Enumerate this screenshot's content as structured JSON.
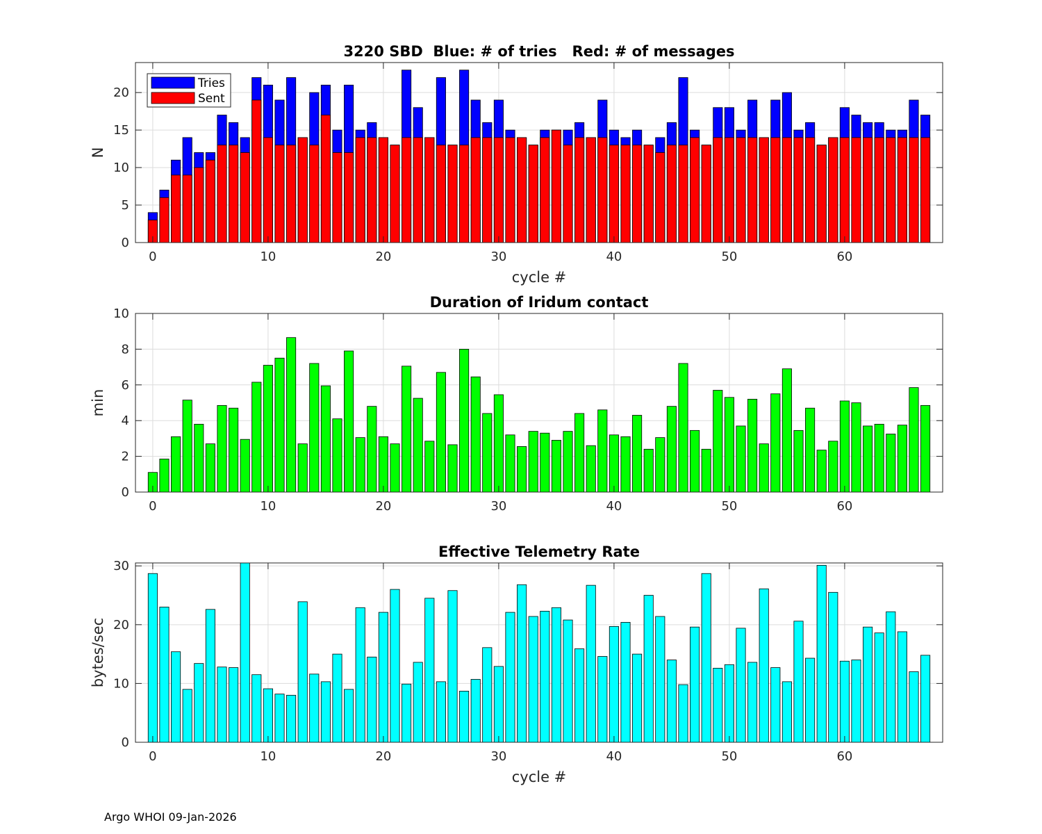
{
  "footer": "Argo WHOI 09-Jan-2026",
  "chart_data": [
    {
      "type": "bar",
      "title": "3220 SBD  Blue: # of tries   Red: # of messages",
      "xlabel": "cycle #",
      "ylabel": "N",
      "xlim": [
        -1.5,
        68.5
      ],
      "ylim": [
        0,
        24
      ],
      "xticks": [
        0,
        10,
        20,
        30,
        40,
        50,
        60
      ],
      "yticks": [
        0,
        5,
        10,
        15,
        20
      ],
      "grid": true,
      "legend": {
        "position": "top-left",
        "entries": [
          "Tries",
          "Sent"
        ]
      },
      "colors": {
        "tries": "#0000ff",
        "sent": "#ff0000"
      },
      "x": [
        0,
        1,
        2,
        3,
        4,
        5,
        6,
        7,
        8,
        9,
        10,
        11,
        12,
        13,
        14,
        15,
        16,
        17,
        18,
        19,
        20,
        21,
        22,
        23,
        24,
        25,
        26,
        27,
        28,
        29,
        30,
        31,
        32,
        33,
        34,
        35,
        36,
        37,
        38,
        39,
        40,
        41,
        42,
        43,
        44,
        45,
        46,
        47,
        48,
        49,
        50,
        51,
        52,
        53,
        54,
        55,
        56,
        57,
        58,
        59,
        60,
        61,
        62,
        63,
        64,
        65,
        66,
        67
      ],
      "series": [
        {
          "name": "Tries",
          "values": [
            4,
            7,
            11,
            14,
            12,
            12,
            17,
            16,
            14,
            22,
            21,
            19,
            22,
            14,
            20,
            21,
            15,
            21,
            15,
            16,
            14,
            13,
            23,
            18,
            14,
            22,
            13,
            23,
            19,
            16,
            19,
            15,
            14,
            13,
            15,
            15,
            15,
            16,
            14,
            19,
            15,
            14,
            15,
            13,
            14,
            16,
            22,
            15,
            13,
            18,
            18,
            15,
            19,
            14,
            19,
            20,
            15,
            16,
            13,
            14,
            18,
            17,
            16,
            16,
            15,
            15,
            19,
            17
          ]
        },
        {
          "name": "Sent",
          "values": [
            3,
            6,
            9,
            9,
            10,
            11,
            13,
            13,
            12,
            19,
            14,
            13,
            13,
            14,
            13,
            17,
            12,
            12,
            14,
            14,
            14,
            13,
            14,
            14,
            14,
            13,
            13,
            13,
            14,
            14,
            14,
            14,
            14,
            13,
            14,
            15,
            13,
            14,
            14,
            14,
            13,
            13,
            13,
            13,
            12,
            13,
            13,
            14,
            13,
            14,
            14,
            14,
            14,
            14,
            14,
            14,
            14,
            14,
            13,
            14,
            14,
            14,
            14,
            14,
            14,
            14,
            14,
            14
          ]
        }
      ]
    },
    {
      "type": "bar",
      "title": "Duration of Iridum contact",
      "xlabel": "",
      "ylabel": "min",
      "xlim": [
        -1.5,
        68.5
      ],
      "ylim": [
        0,
        10
      ],
      "xticks": [
        0,
        10,
        20,
        30,
        40,
        50,
        60
      ],
      "yticks": [
        0,
        2,
        4,
        6,
        8,
        10
      ],
      "grid": true,
      "colors": {
        "bar": "#00ff00"
      },
      "x": [
        0,
        1,
        2,
        3,
        4,
        5,
        6,
        7,
        8,
        9,
        10,
        11,
        12,
        13,
        14,
        15,
        16,
        17,
        18,
        19,
        20,
        21,
        22,
        23,
        24,
        25,
        26,
        27,
        28,
        29,
        30,
        31,
        32,
        33,
        34,
        35,
        36,
        37,
        38,
        39,
        40,
        41,
        42,
        43,
        44,
        45,
        46,
        47,
        48,
        49,
        50,
        51,
        52,
        53,
        54,
        55,
        56,
        57,
        58,
        59,
        60,
        61,
        62,
        63,
        64,
        65,
        66,
        67
      ],
      "series": [
        {
          "name": "Duration",
          "values": [
            1.1,
            1.85,
            3.1,
            5.15,
            3.8,
            2.7,
            4.85,
            4.7,
            2.95,
            6.15,
            7.1,
            7.5,
            8.65,
            2.7,
            7.2,
            5.95,
            4.1,
            7.9,
            3.05,
            4.8,
            3.1,
            2.7,
            7.05,
            5.25,
            2.85,
            6.7,
            2.65,
            8.0,
            6.45,
            4.4,
            5.45,
            3.2,
            2.55,
            3.4,
            3.3,
            2.9,
            3.4,
            4.4,
            2.6,
            4.6,
            3.2,
            3.1,
            4.3,
            2.4,
            3.05,
            4.8,
            7.2,
            3.45,
            2.4,
            5.7,
            5.3,
            3.7,
            5.2,
            2.7,
            5.5,
            6.9,
            3.45,
            4.7,
            2.35,
            2.85,
            5.1,
            5.0,
            3.7,
            3.8,
            3.25,
            3.75,
            5.85,
            4.85
          ]
        }
      ]
    },
    {
      "type": "bar",
      "title": "Effective Telemetry Rate",
      "xlabel": "cycle #",
      "ylabel": "bytes/sec",
      "xlim": [
        -1.5,
        68.5
      ],
      "ylim": [
        0,
        30.5
      ],
      "xticks": [
        0,
        10,
        20,
        30,
        40,
        50,
        60
      ],
      "yticks": [
        0,
        10,
        20,
        30
      ],
      "grid": true,
      "colors": {
        "bar": "#00ffff"
      },
      "x": [
        0,
        1,
        2,
        3,
        4,
        5,
        6,
        7,
        8,
        9,
        10,
        11,
        12,
        13,
        14,
        15,
        16,
        17,
        18,
        19,
        20,
        21,
        22,
        23,
        24,
        25,
        26,
        27,
        28,
        29,
        30,
        31,
        32,
        33,
        34,
        35,
        36,
        37,
        38,
        39,
        40,
        41,
        42,
        43,
        44,
        45,
        46,
        47,
        48,
        49,
        50,
        51,
        52,
        53,
        54,
        55,
        56,
        57,
        58,
        59,
        60,
        61,
        62,
        63,
        64,
        65,
        66,
        67
      ],
      "series": [
        {
          "name": "Rate",
          "values": [
            28.7,
            23.0,
            15.4,
            9.0,
            13.4,
            22.6,
            12.8,
            12.7,
            31.0,
            11.5,
            9.1,
            8.2,
            8.0,
            23.9,
            11.6,
            10.3,
            15.0,
            9.0,
            22.9,
            14.5,
            22.1,
            26.0,
            9.9,
            13.6,
            24.5,
            10.3,
            25.8,
            8.7,
            10.7,
            16.1,
            12.9,
            22.1,
            26.8,
            21.4,
            22.3,
            22.9,
            20.8,
            15.9,
            26.7,
            14.6,
            19.7,
            20.4,
            15.0,
            25.0,
            21.4,
            14.0,
            9.8,
            19.6,
            28.7,
            12.6,
            13.2,
            19.4,
            13.6,
            26.1,
            12.7,
            10.3,
            20.6,
            14.3,
            30.1,
            25.5,
            13.8,
            14.0,
            19.6,
            18.6,
            22.2,
            18.8,
            12.0,
            14.8
          ]
        }
      ]
    }
  ]
}
